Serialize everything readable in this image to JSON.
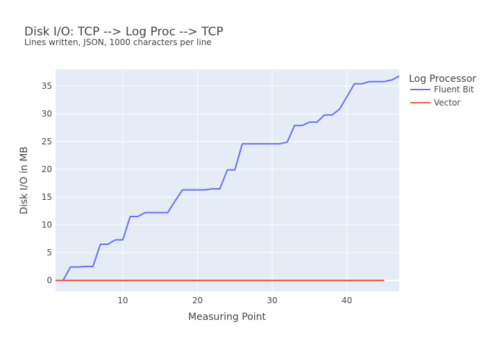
{
  "chart_data": {
    "type": "line",
    "title": "Disk I/O: TCP --> Log Proc --> TCP",
    "subtitle": "Lines written, JSON, 1000 characters per line",
    "xlabel": "Measuring Point",
    "ylabel": "Disk I/O in MB",
    "xlim": [
      1,
      47
    ],
    "ylim": [
      -2,
      38
    ],
    "xticks": [
      10,
      20,
      30,
      40
    ],
    "yticks": [
      0,
      5,
      10,
      15,
      20,
      25,
      30,
      35
    ],
    "grid": true,
    "legend": {
      "title": "Log Processor",
      "position": "top-right"
    },
    "series": [
      {
        "name": "Fluent Bit",
        "color": "#636efa",
        "x": [
          1,
          2,
          3,
          4,
          5,
          6,
          7,
          8,
          9,
          10,
          11,
          12,
          13,
          14,
          15,
          16,
          17,
          18,
          19,
          20,
          21,
          22,
          23,
          24,
          25,
          26,
          27,
          28,
          29,
          30,
          31,
          32,
          33,
          34,
          35,
          36,
          37,
          38,
          39,
          40,
          41,
          42,
          43,
          44,
          45,
          46,
          47
        ],
        "y": [
          0,
          0,
          2.4,
          2.4,
          2.5,
          2.5,
          6.5,
          6.5,
          7.3,
          7.3,
          11.5,
          11.5,
          12.2,
          12.2,
          12.2,
          12.2,
          14.3,
          16.3,
          16.3,
          16.3,
          16.3,
          16.5,
          16.5,
          19.9,
          19.9,
          24.6,
          24.6,
          24.6,
          24.6,
          24.6,
          24.6,
          24.9,
          27.9,
          27.9,
          28.5,
          28.5,
          29.8,
          29.8,
          30.8,
          33.1,
          35.4,
          35.4,
          35.8,
          35.8,
          35.8,
          36.1,
          36.8
        ]
      },
      {
        "name": "Vector",
        "color": "#ef553b",
        "x": [
          1,
          5,
          10,
          15,
          20,
          25,
          30,
          35,
          40,
          45
        ],
        "y": [
          0,
          0,
          0,
          0,
          0,
          0,
          0,
          0,
          0,
          0
        ]
      }
    ]
  }
}
